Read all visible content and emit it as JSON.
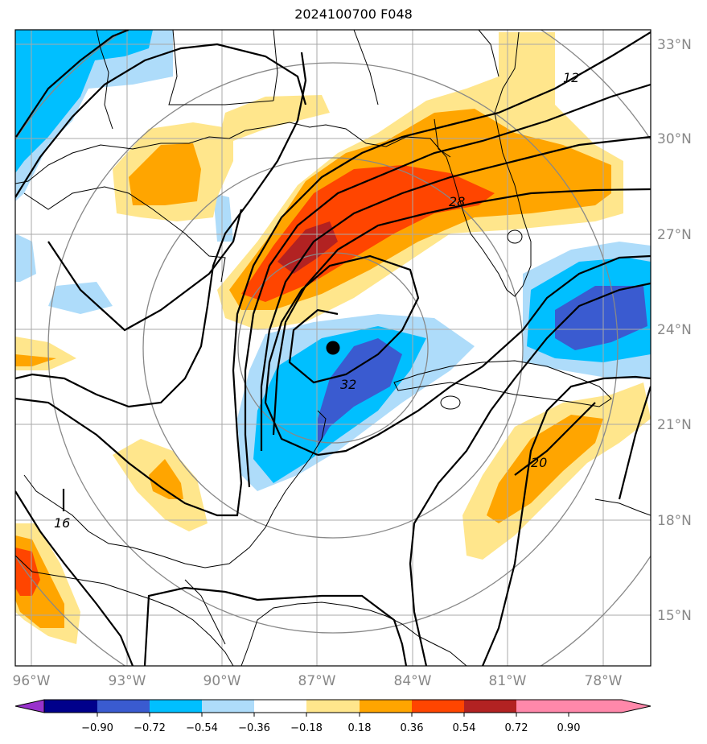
{
  "title": "2024100700 F048",
  "lat_labels": [
    "33°N",
    "30°N",
    "27°N",
    "24°N",
    "21°N",
    "18°N",
    "15°N"
  ],
  "lon_labels": [
    "96°W",
    "93°W",
    "90°W",
    "87°W",
    "84°W",
    "81°W",
    "78°W"
  ],
  "contour_labels": [
    "12",
    "28",
    "32",
    "20",
    "16"
  ],
  "colorbar": {
    "ticks": [
      "−0.90",
      "−0.72",
      "−0.54",
      "−0.36",
      "−0.18",
      "0.18",
      "0.36",
      "0.54",
      "0.72",
      "0.90"
    ],
    "colors": [
      "#9932cc",
      "#00008b",
      "#3a5bd0",
      "#00bfff",
      "#aedcfa",
      "#ffffff",
      "#ffe68c",
      "#ffa500",
      "#ff4500",
      "#b22222",
      "#ff88aa"
    ]
  }
}
